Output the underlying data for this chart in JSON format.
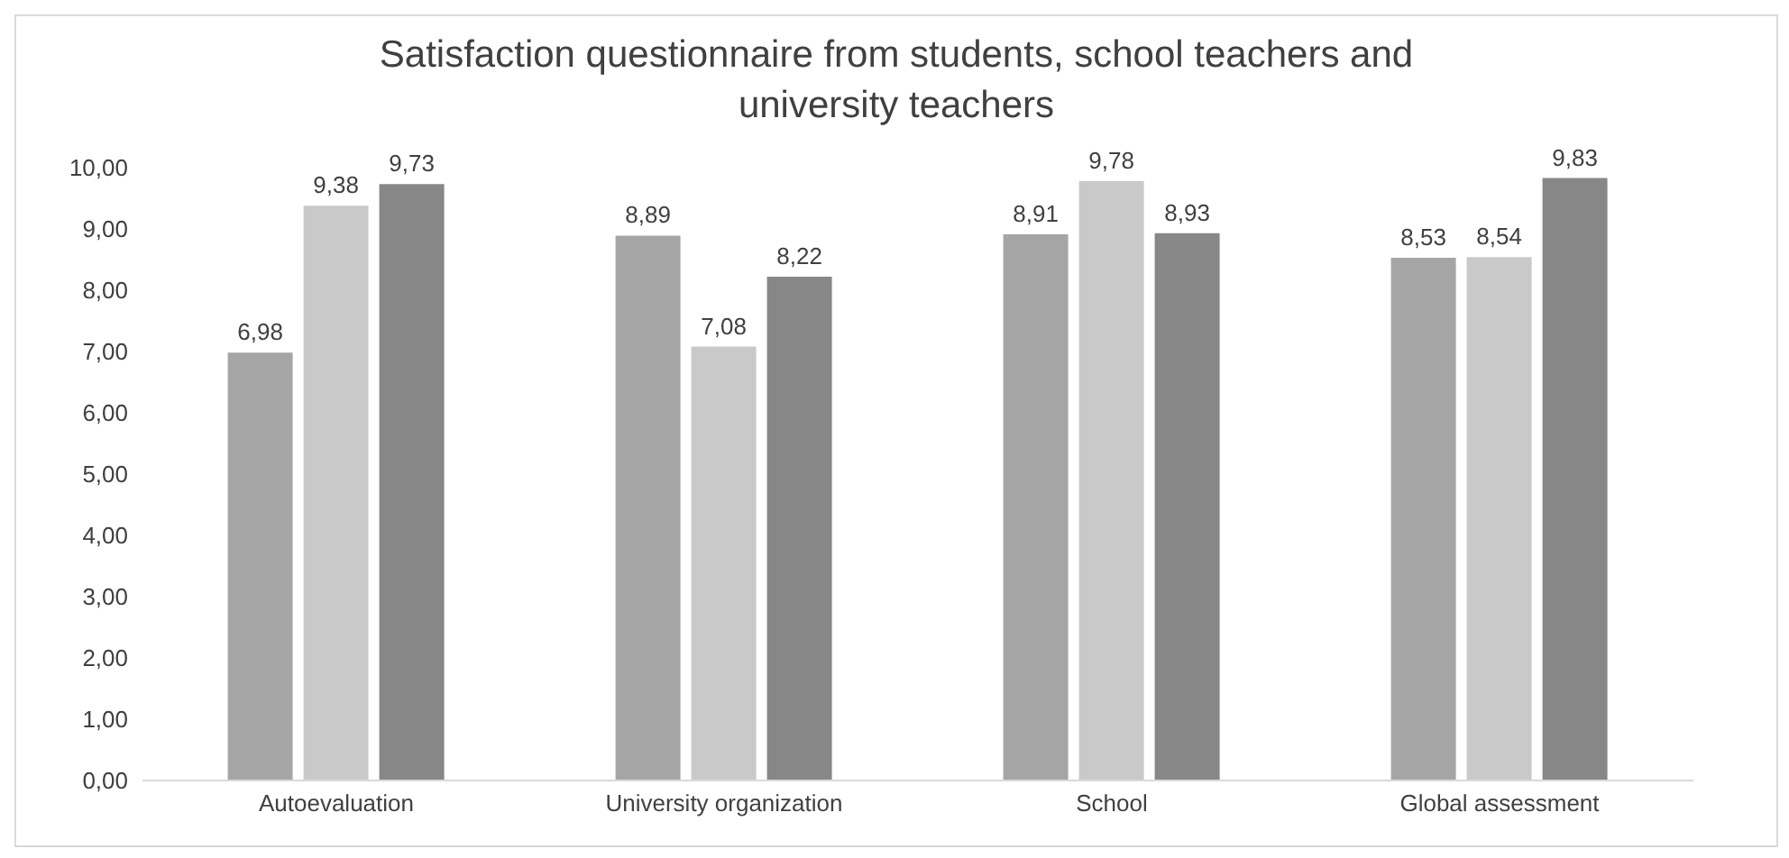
{
  "chart_data": {
    "type": "bar",
    "title": "Satisfaction questionnaire from students, school teachers and university teachers",
    "categories": [
      "Autoevaluation",
      "University organization",
      "School",
      "Global assessment"
    ],
    "series": [
      {
        "color": "#a5a5a5",
        "values": [
          6.98,
          8.89,
          8.91,
          8.53
        ],
        "value_labels": [
          "6,98",
          "8,89",
          "8,91",
          "8,53"
        ]
      },
      {
        "color": "#c9c9c9",
        "values": [
          9.38,
          7.08,
          9.78,
          8.54
        ],
        "value_labels": [
          "9,38",
          "7,08",
          "9,78",
          "8,54"
        ]
      },
      {
        "color": "#878787",
        "values": [
          9.73,
          8.22,
          8.93,
          9.83
        ],
        "value_labels": [
          "9,73",
          "8,22",
          "8,93",
          "9,83"
        ]
      }
    ],
    "ylim": [
      0,
      10
    ],
    "yticks": [
      {
        "value": 0,
        "label": "0,00"
      },
      {
        "value": 1,
        "label": "1,00"
      },
      {
        "value": 2,
        "label": "2,00"
      },
      {
        "value": 3,
        "label": "3,00"
      },
      {
        "value": 4,
        "label": "4,00"
      },
      {
        "value": 5,
        "label": "5,00"
      },
      {
        "value": 6,
        "label": "6,00"
      },
      {
        "value": 7,
        "label": "7,00"
      },
      {
        "value": 8,
        "label": "8,00"
      },
      {
        "value": 9,
        "label": "9,00"
      },
      {
        "value": 10,
        "label": "10,00"
      }
    ],
    "grid": false,
    "legend": false
  }
}
